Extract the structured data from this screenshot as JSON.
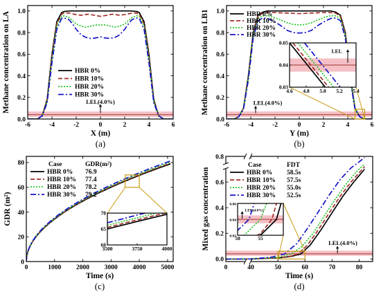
{
  "colors": {
    "HBR 0%": "#000000",
    "HBR 10%": "#a0302a",
    "HBR 20%": "#22c522",
    "HBR 30%": "#1414c8",
    "lel_band": "#f4c0c6",
    "lel_line": "#a0302a",
    "zoom": "#c89a10"
  },
  "chart_data": [
    {
      "id": "a",
      "type": "line",
      "caption": "(a)",
      "xlabel": "X (m)",
      "ylabel": "Methane concentration on LA",
      "xlim": [
        -6,
        6
      ],
      "ylim": [
        0,
        1.05
      ],
      "xticks": [
        -6,
        -4,
        -2,
        0,
        2,
        4,
        6
      ],
      "yticks": [
        0.0,
        0.2,
        0.4,
        0.6,
        0.8,
        1.0
      ],
      "legend_position": "center",
      "annotation": "LEL(4.0%)",
      "lel": 0.04,
      "series": [
        {
          "name": "HBR 0%",
          "x": [
            -6,
            -5.2,
            -4.8,
            -4.4,
            -4.0,
            -3.6,
            -3.2,
            -3.0,
            -2.5,
            -2.0,
            -1.0,
            0,
            1.0,
            2.0,
            2.5,
            3.0,
            3.2,
            3.6,
            4.0,
            4.4,
            4.8,
            5.2,
            6
          ],
          "y": [
            0,
            0,
            0.03,
            0.18,
            0.6,
            0.9,
            0.985,
            0.995,
            1.0,
            1.0,
            1.0,
            1.0,
            1.0,
            1.0,
            1.0,
            0.995,
            0.985,
            0.9,
            0.6,
            0.18,
            0.03,
            0,
            0
          ]
        },
        {
          "name": "HBR 10%",
          "x": [
            -6,
            -5.2,
            -4.8,
            -4.4,
            -4.0,
            -3.6,
            -3.2,
            -3.0,
            -2.6,
            -2.2,
            -1.6,
            -1.0,
            -0.5,
            0,
            0.5,
            1.0,
            1.6,
            2.2,
            2.6,
            3.0,
            3.2,
            3.6,
            4.0,
            4.4,
            4.8,
            5.2,
            6
          ],
          "y": [
            0,
            0,
            0.03,
            0.17,
            0.58,
            0.88,
            0.97,
            0.98,
            0.98,
            0.97,
            0.96,
            0.97,
            0.96,
            0.95,
            0.96,
            0.97,
            0.96,
            0.97,
            0.98,
            0.98,
            0.97,
            0.88,
            0.58,
            0.17,
            0.03,
            0,
            0
          ]
        },
        {
          "name": "HBR 20%",
          "x": [
            -6,
            -5.2,
            -4.8,
            -4.4,
            -4.0,
            -3.6,
            -3.2,
            -3.0,
            -2.6,
            -2.3,
            -2.0,
            -1.6,
            -1.2,
            -0.8,
            -0.4,
            0,
            0.4,
            0.8,
            1.2,
            1.6,
            2.0,
            2.3,
            2.6,
            3.0,
            3.2,
            3.6,
            4.0,
            4.4,
            4.8,
            5.2,
            6
          ],
          "y": [
            0,
            0,
            0.03,
            0.16,
            0.55,
            0.86,
            0.95,
            0.955,
            0.94,
            0.91,
            0.88,
            0.86,
            0.85,
            0.86,
            0.87,
            0.87,
            0.87,
            0.86,
            0.85,
            0.86,
            0.88,
            0.91,
            0.94,
            0.955,
            0.95,
            0.86,
            0.55,
            0.16,
            0.03,
            0,
            0
          ]
        },
        {
          "name": "HBR 30%",
          "x": [
            -6,
            -5.2,
            -4.8,
            -4.4,
            -4.0,
            -3.6,
            -3.2,
            -3.0,
            -2.6,
            -2.3,
            -2.0,
            -1.6,
            -1.2,
            -0.8,
            -0.4,
            0,
            0.4,
            0.8,
            1.2,
            1.6,
            2.0,
            2.3,
            2.6,
            3.0,
            3.2,
            3.6,
            4.0,
            4.4,
            4.8,
            5.2,
            6
          ],
          "y": [
            0,
            0,
            0.03,
            0.15,
            0.52,
            0.83,
            0.93,
            0.935,
            0.92,
            0.88,
            0.83,
            0.78,
            0.755,
            0.745,
            0.75,
            0.76,
            0.75,
            0.745,
            0.755,
            0.78,
            0.83,
            0.88,
            0.92,
            0.935,
            0.93,
            0.83,
            0.52,
            0.15,
            0.03,
            0,
            0
          ]
        }
      ]
    },
    {
      "id": "b",
      "type": "line",
      "caption": "(b)",
      "xlabel": "Y (m)",
      "ylabel": "Methane concentration on LB1",
      "xlim": [
        -6,
        6
      ],
      "ylim": [
        0,
        1.05
      ],
      "xticks": [
        -6,
        -4,
        -2,
        0,
        2,
        4,
        6
      ],
      "yticks": [
        0.0,
        0.2,
        0.4,
        0.6,
        0.8,
        1.0
      ],
      "legend_position": "top-left",
      "annotation": "LEL(4.0%)",
      "lel": 0.04,
      "series": [
        {
          "name": "HBR 0%",
          "x": [
            -6,
            -5.4,
            -5.0,
            -4.6,
            -4.2,
            -3.8,
            -3.4,
            -3.0,
            -2.6,
            -2.0,
            -1.0,
            0,
            1.0,
            2.0,
            2.6,
            3.0,
            3.4,
            3.8,
            4.2,
            4.6,
            5.0,
            5.4,
            6
          ],
          "y": [
            0,
            0,
            0.02,
            0.1,
            0.4,
            0.8,
            0.96,
            0.99,
            1.0,
            1.0,
            1.0,
            1.0,
            1.0,
            1.0,
            1.0,
            0.99,
            0.96,
            0.8,
            0.4,
            0.1,
            0.02,
            0,
            0
          ]
        },
        {
          "name": "HBR 10%",
          "x": [
            -6,
            -5.4,
            -5.0,
            -4.6,
            -4.2,
            -3.8,
            -3.4,
            -3.0,
            -2.6,
            -2.0,
            -1.0,
            0,
            1.0,
            2.0,
            2.6,
            3.0,
            3.4,
            3.8,
            4.2,
            4.6,
            5.0,
            5.4,
            6
          ],
          "y": [
            0,
            0,
            0.02,
            0.1,
            0.39,
            0.79,
            0.95,
            0.98,
            0.985,
            0.985,
            0.98,
            0.975,
            0.98,
            0.985,
            0.985,
            0.98,
            0.95,
            0.79,
            0.39,
            0.1,
            0.02,
            0,
            0
          ]
        },
        {
          "name": "HBR 20%",
          "x": [
            -6,
            -5.4,
            -5.0,
            -4.6,
            -4.2,
            -3.8,
            -3.4,
            -3.0,
            -2.6,
            -2.2,
            -1.6,
            -1.0,
            -0.5,
            0,
            0.5,
            1.0,
            1.6,
            2.2,
            2.6,
            3.0,
            3.4,
            3.8,
            4.2,
            4.6,
            5.0,
            5.4,
            6
          ],
          "y": [
            0,
            0,
            0.02,
            0.1,
            0.38,
            0.77,
            0.93,
            0.955,
            0.955,
            0.945,
            0.92,
            0.89,
            0.875,
            0.87,
            0.875,
            0.89,
            0.92,
            0.945,
            0.955,
            0.955,
            0.93,
            0.77,
            0.38,
            0.1,
            0.02,
            0,
            0
          ]
        },
        {
          "name": "HBR 30%",
          "x": [
            -6,
            -5.4,
            -5.0,
            -4.6,
            -4.2,
            -3.8,
            -3.4,
            -3.0,
            -2.6,
            -2.2,
            -1.6,
            -1.0,
            -0.5,
            0,
            0.5,
            1.0,
            1.6,
            2.2,
            2.6,
            3.0,
            3.4,
            3.8,
            4.2,
            4.6,
            5.0,
            5.4,
            6
          ],
          "y": [
            0,
            0,
            0.02,
            0.09,
            0.36,
            0.75,
            0.91,
            0.935,
            0.93,
            0.91,
            0.87,
            0.82,
            0.8,
            0.795,
            0.8,
            0.82,
            0.87,
            0.91,
            0.93,
            0.935,
            0.91,
            0.75,
            0.36,
            0.09,
            0.02,
            0,
            0
          ]
        }
      ],
      "inset": {
        "xlim": [
          4.6,
          5.4
        ],
        "ylim": [
          0.03,
          0.05
        ],
        "xticks": [
          4.6,
          4.8,
          5.0,
          5.2,
          5.4
        ],
        "yticks": [
          0.03,
          0.04,
          0.05
        ],
        "annotation": "LEL",
        "series": [
          {
            "name": "HBR 0%",
            "x": [
              4.6,
              5.03
            ],
            "y": [
              0.05,
              0.03
            ]
          },
          {
            "name": "HBR 10%",
            "x": [
              4.64,
              5.07
            ],
            "y": [
              0.05,
              0.03
            ]
          },
          {
            "name": "HBR 20%",
            "x": [
              4.7,
              5.13
            ],
            "y": [
              0.05,
              0.03
            ]
          },
          {
            "name": "HBR 30%",
            "x": [
              4.78,
              5.21
            ],
            "y": [
              0.05,
              0.03
            ]
          }
        ]
      }
    },
    {
      "id": "c",
      "type": "line",
      "caption": "(c)",
      "xlabel": "Time (s)",
      "ylabel": "GDR (m²)",
      "xlim": [
        0,
        5200
      ],
      "ylim": [
        0,
        85
      ],
      "xticks": [
        0,
        1000,
        2000,
        3000,
        4000,
        5000
      ],
      "yticks": [
        0,
        20,
        40,
        60,
        80
      ],
      "legend_position": "top-left",
      "legend_headers": [
        "Case",
        "GDR(m²)"
      ],
      "legend_values": [
        "76.9",
        "77.4",
        "78.2",
        "79.2"
      ],
      "series": [
        {
          "name": "HBR 0%",
          "final": 76.9
        },
        {
          "name": "HBR 10%",
          "final": 77.4
        },
        {
          "name": "HBR 20%",
          "final": 78.2
        },
        {
          "name": "HBR 30%",
          "final": 79.2
        }
      ],
      "inset": {
        "xlim": [
          3500,
          4000
        ],
        "ylim": [
          60,
          70
        ],
        "xticks": [
          3500,
          3750,
          4000
        ],
        "yticks": [
          60,
          65,
          70
        ]
      }
    },
    {
      "id": "d",
      "type": "line",
      "caption": "(d)",
      "xlabel": "Time (s)",
      "ylabel": "Mixed gas concentration",
      "xlim": [
        0,
        85
      ],
      "ylim": [
        -0.02,
        0.8
      ],
      "xticks": [
        0,
        40,
        50,
        60,
        70,
        80
      ],
      "yticks": [
        0.0,
        0.2,
        0.4,
        0.6,
        0.8
      ],
      "legend_position": "top-left",
      "legend_headers": [
        "Case",
        "FDT"
      ],
      "legend_values": [
        "58.5s",
        "57.5s",
        "55.0s",
        "52.5s"
      ],
      "annotation": "LEL(4.0%)",
      "lel": 0.04,
      "series": [
        {
          "name": "HBR 0%",
          "fdt": 58.5,
          "x": [
            0,
            40,
            50,
            55,
            58.5,
            62,
            66,
            70,
            74,
            78,
            82
          ],
          "y": [
            0,
            0,
            0.008,
            0.02,
            0.04,
            0.11,
            0.23,
            0.36,
            0.49,
            0.6,
            0.7
          ]
        },
        {
          "name": "HBR 10%",
          "fdt": 57.5,
          "x": [
            0,
            40,
            50,
            55,
            57.5,
            61,
            65,
            69,
            73,
            77,
            82
          ],
          "y": [
            0,
            0,
            0.009,
            0.022,
            0.04,
            0.11,
            0.23,
            0.36,
            0.49,
            0.6,
            0.72
          ]
        },
        {
          "name": "HBR 20%",
          "fdt": 55.0,
          "x": [
            0,
            40,
            50,
            55,
            59,
            63,
            67,
            71,
            75,
            79,
            82
          ],
          "y": [
            0,
            0,
            0.012,
            0.04,
            0.1,
            0.2,
            0.33,
            0.46,
            0.58,
            0.68,
            0.74
          ]
        },
        {
          "name": "HBR 30%",
          "fdt": 52.5,
          "x": [
            0,
            40,
            48,
            52.5,
            57,
            61,
            65,
            69,
            73,
            77,
            82
          ],
          "y": [
            0,
            0,
            0.015,
            0.04,
            0.12,
            0.24,
            0.37,
            0.5,
            0.62,
            0.71,
            0.79
          ]
        }
      ],
      "inset": {
        "xlim": [
          50,
          60
        ],
        "ylim": [
          0.02,
          0.06
        ],
        "xticks": [
          50,
          55
        ],
        "yticks": [
          0.02,
          0.04,
          0.06
        ],
        "annotation": "LEL(4.0%)"
      }
    }
  ]
}
